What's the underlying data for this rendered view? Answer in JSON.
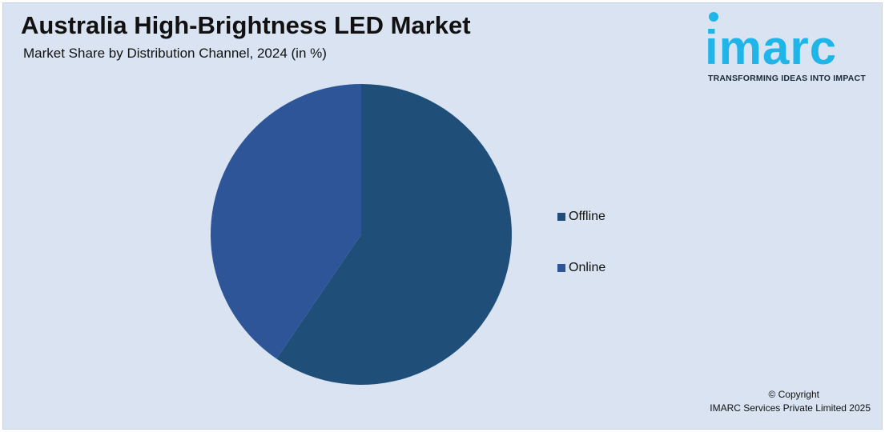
{
  "header": {
    "title": "Australia High-Brightness LED Market",
    "subtitle": "Market Share by Distribution Channel, 2024 (in %)"
  },
  "logo": {
    "wordmark": "imarc",
    "tagline": "TRANSFORMING IDEAS INTO IMPACT",
    "color": "#1fb5e8"
  },
  "chart_data": {
    "type": "pie",
    "title": "Australia High-Brightness LED Market",
    "subtitle": "Market Share by Distribution Channel, 2024 (in %)",
    "categories": [
      "Offline",
      "Online"
    ],
    "values": [
      59.5,
      40.5
    ],
    "colors": [
      "#1f4e79",
      "#2e5597"
    ],
    "start_angle_deg": 0,
    "direction": "clockwise",
    "legend_position": "right"
  },
  "legend": {
    "items": [
      {
        "label": "Offline",
        "color": "#1f4e79"
      },
      {
        "label": "Online",
        "color": "#2e5597"
      }
    ]
  },
  "footer": {
    "copyright_line1": "© Copyright",
    "copyright_line2": "IMARC Services Private Limited 2025"
  }
}
